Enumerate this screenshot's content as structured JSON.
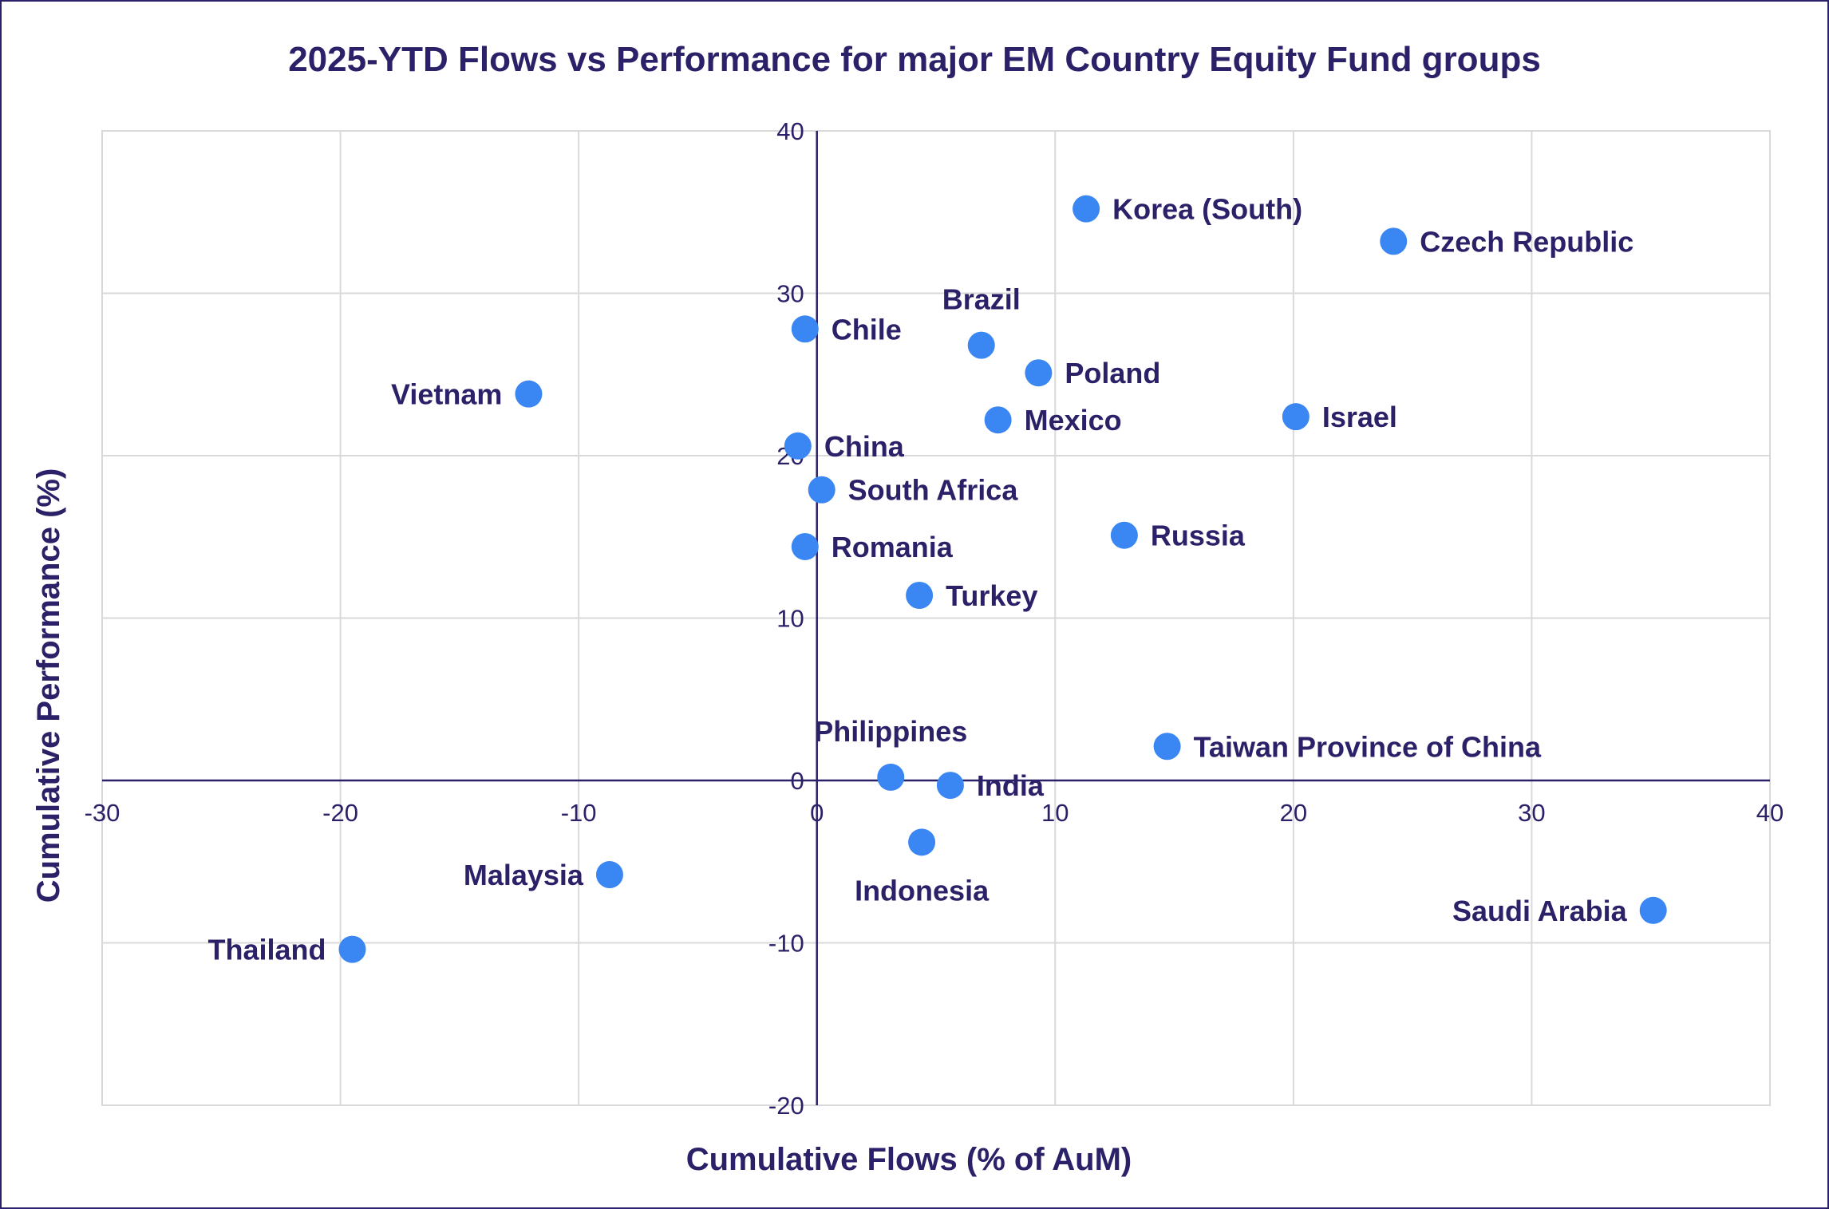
{
  "chart_data": {
    "type": "scatter",
    "title": "2025-YTD Flows vs Performance for major EM Country Equity Fund groups",
    "xlabel": "Cumulative Flows (% of AuM)",
    "ylabel": "Cumulative Performance (%)",
    "xlim": [
      -30,
      40
    ],
    "ylim": [
      -20,
      40
    ],
    "x_ticks": [
      -30,
      -20,
      -10,
      0,
      10,
      20,
      30,
      40
    ],
    "y_ticks": [
      -20,
      -10,
      0,
      10,
      20,
      30,
      40
    ],
    "x_tick_labels": [
      "-30",
      "-20",
      "-10",
      "0",
      "10",
      "20",
      "30",
      "40"
    ],
    "y_tick_labels": [
      "-20",
      "-10",
      "0",
      "10",
      "20",
      "30",
      "40"
    ],
    "grid": true,
    "marker_color": "#3a86f2",
    "text_color": "#2b2168",
    "points": [
      {
        "label": "Korea (South)",
        "x": 11.3,
        "y": 35.2,
        "label_pos": "right"
      },
      {
        "label": "Czech Republic",
        "x": 24.2,
        "y": 33.2,
        "label_pos": "right"
      },
      {
        "label": "Brazil",
        "x": 6.9,
        "y": 26.8,
        "label_pos": "top"
      },
      {
        "label": "Chile",
        "x": -0.5,
        "y": 27.8,
        "label_pos": "right"
      },
      {
        "label": "Poland",
        "x": 9.3,
        "y": 25.1,
        "label_pos": "right"
      },
      {
        "label": "Vietnam",
        "x": -12.1,
        "y": 23.8,
        "label_pos": "left"
      },
      {
        "label": "Mexico",
        "x": 7.6,
        "y": 22.2,
        "label_pos": "right"
      },
      {
        "label": "Israel",
        "x": 20.1,
        "y": 22.4,
        "label_pos": "right"
      },
      {
        "label": "China",
        "x": -0.8,
        "y": 20.6,
        "label_pos": "right"
      },
      {
        "label": "South Africa",
        "x": 0.2,
        "y": 17.9,
        "label_pos": "right"
      },
      {
        "label": "Russia",
        "x": 12.9,
        "y": 15.1,
        "label_pos": "right"
      },
      {
        "label": "Romania",
        "x": -0.5,
        "y": 14.4,
        "label_pos": "right"
      },
      {
        "label": "Turkey",
        "x": 4.3,
        "y": 11.4,
        "label_pos": "right"
      },
      {
        "label": "Philippines",
        "x": 3.1,
        "y": 0.2,
        "label_pos": "top"
      },
      {
        "label": "Taiwan Province of China",
        "x": 14.7,
        "y": 2.1,
        "label_pos": "right"
      },
      {
        "label": "India",
        "x": 5.6,
        "y": -0.3,
        "label_pos": "right"
      },
      {
        "label": "Indonesia",
        "x": 4.4,
        "y": -3.8,
        "label_pos": "bottom"
      },
      {
        "label": "Malaysia",
        "x": -8.7,
        "y": -5.8,
        "label_pos": "left"
      },
      {
        "label": "Saudi Arabia",
        "x": 35.1,
        "y": -8.0,
        "label_pos": "left"
      },
      {
        "label": "Thailand",
        "x": -19.5,
        "y": -10.4,
        "label_pos": "left"
      }
    ]
  }
}
